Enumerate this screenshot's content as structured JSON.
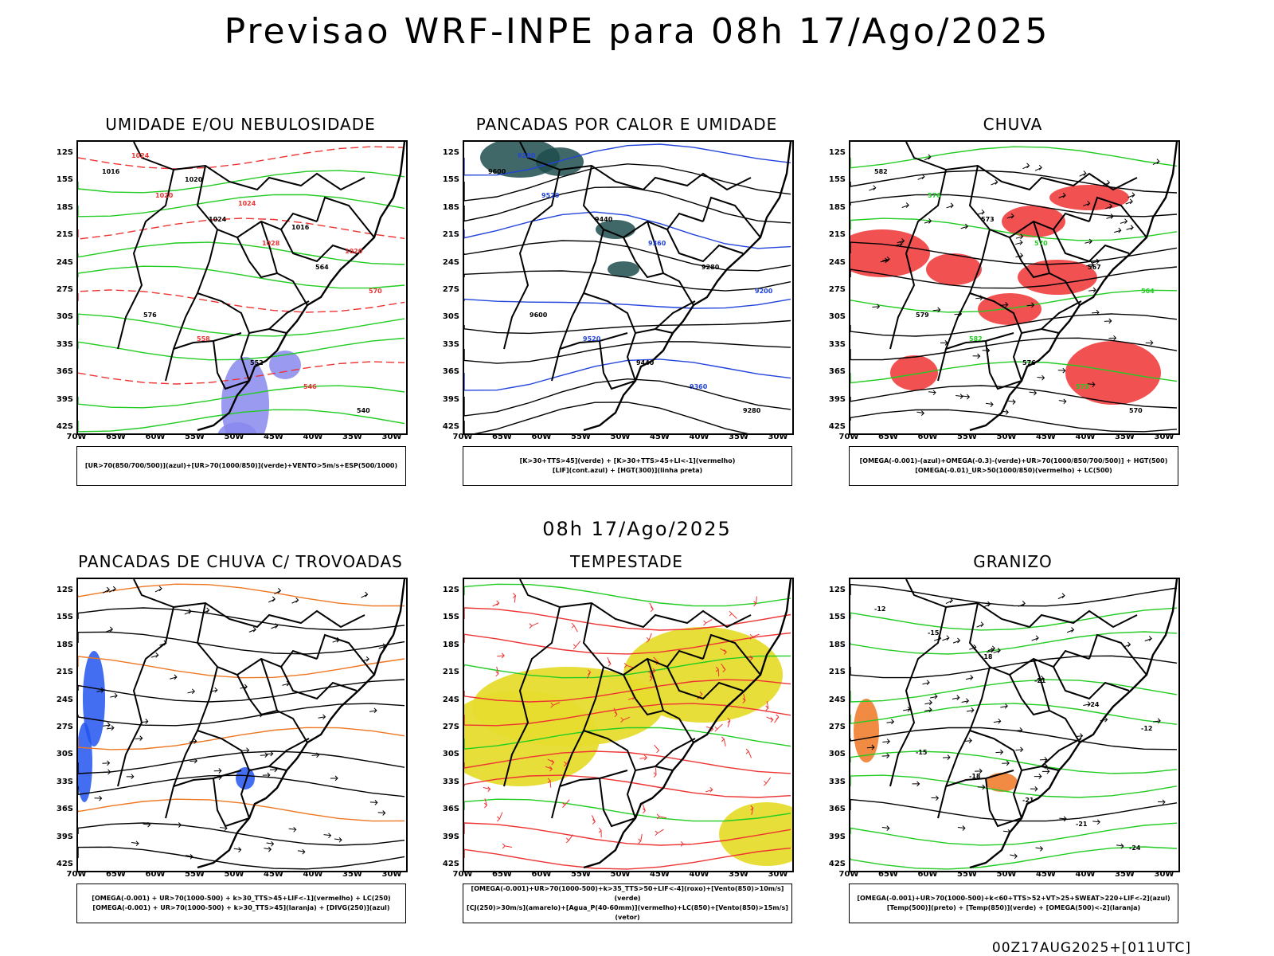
{
  "title": "Previsao WRF-INPE  para 08h 17/Ago/2025",
  "mid_title": "08h 17/Ago/2025",
  "footer": "00Z17AUG2025+[011UTC]",
  "lat_labels": [
    "12S",
    "15S",
    "18S",
    "21S",
    "24S",
    "27S",
    "30S",
    "33S",
    "36S",
    "39S",
    "42S"
  ],
  "lon_labels": [
    "70W",
    "65W",
    "60W",
    "55W",
    "50W",
    "45W",
    "40W",
    "35W",
    "30W"
  ],
  "panels": [
    {
      "title": "UMIDADE E/OU NEBULOSIDADE",
      "legend": [
        "[UR>70(850/700/500)](azul)+[UR>70(1000/850)](verde)+VENTO>5m/s+ESP(500/1000)"
      ],
      "labels": [
        "1016",
        "1020",
        "1024",
        "1028",
        "564",
        "570",
        "576",
        "558",
        "552",
        "546",
        "540",
        "1024",
        "1020",
        "1024",
        "1016",
        "1020"
      ],
      "colors": {
        "main": "#22cc22",
        "alt": "#ee3333",
        "fill": "#8888ee"
      }
    },
    {
      "title": "PANCADAS POR CALOR E UMIDADE",
      "legend": [
        "[K>30+TTS>45](verde) + [K>30+TTS>45+LI<-1](vermelho)",
        "[LIF](cont.azul) + [HGT(300)](linha preta)"
      ],
      "labels": [
        "9600",
        "9520",
        "9440",
        "9360",
        "9280",
        "9200",
        "9600",
        "9520",
        "9440",
        "9360",
        "9280",
        "9200"
      ],
      "colors": {
        "main": "#000000",
        "alt": "#2244dd",
        "fill": "#1f4d4d"
      }
    },
    {
      "title": "CHUVA",
      "legend": [
        "[OMEGA(-0.001)-(azul)+OMEGA(-0.3)-(verde)+UR>70(1000/850/700/500)] + HGT(500)",
        "[OMEGA(-0.01)_UR>50(1000/850)(vermelho) + LC(500)"
      ],
      "labels": [
        "582",
        "576",
        "573",
        "570",
        "567",
        "564",
        "579",
        "582",
        "576",
        "573",
        "570"
      ],
      "colors": {
        "main": "#000000",
        "alt": "#22cc22",
        "fill": "#ee3333"
      }
    },
    {
      "title": "PANCADAS DE CHUVA C/ TROVOADAS",
      "legend": [
        "[OMEGA(-0.001) + UR>70(1000-500) + k>30_TTS>45+LIF<-1](vermelho) + LC(250)",
        "[OMEGA(-0.001) + UR>70(1000-500) + k>30_TTS>45](laranja) + [DIVG(250)](azul)"
      ],
      "labels": [],
      "colors": {
        "main": "#000000",
        "alt": "#ee7722",
        "fill": "#2255ee"
      }
    },
    {
      "title": "TEMPESTADE",
      "legend": [
        "[OMEGA(-0.001)+UR>70(1000-500)+k>35_TTS>50+LIF<-4](roxo)+[Vento(850)>10m/s](verde)",
        "[CJ(250)>30m/s](amarelo)+[Agua_P(40-60mm)](vermelho)+LC(850)+[Vento(850)>15m/s](vetor)"
      ],
      "labels": [],
      "colors": {
        "main": "#ee3333",
        "alt": "#22cc22",
        "fill": "#e6dc2e"
      }
    },
    {
      "title": "GRANIZO",
      "legend": [
        "[OMEGA(-0.001)+UR>70(1000-500)+k<60+TTS>52+VT>25+SWEAT>220+LIF<-2](azul)",
        "[Temp(500)](preto) + [Temp(850)](verde) + [OMEGA(500)<-2](laranja)"
      ],
      "labels": [
        "-12",
        "-15",
        "-18",
        "-21",
        "-24",
        "-12",
        "-15",
        "-18",
        "-21",
        "-21",
        "-24"
      ],
      "colors": {
        "main": "#22cc22",
        "alt": "#000000",
        "fill": "#ee7722"
      }
    }
  ]
}
